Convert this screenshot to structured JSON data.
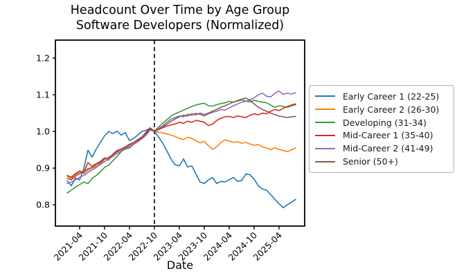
{
  "figure": {
    "title_line1": "Headcount Over Time by Age Group",
    "title_line2": "Software Developers (Normalized)",
    "xlabel": "Date"
  },
  "chart_data": {
    "type": "line",
    "title": "Headcount Over Time by Age Group — Software Developers (Normalized)",
    "xlabel": "Date",
    "ylabel": "",
    "grid": false,
    "legend_position": "right-outside",
    "x_months": [
      "2021-01",
      "2021-02",
      "2021-03",
      "2021-04",
      "2021-05",
      "2021-06",
      "2021-07",
      "2021-08",
      "2021-09",
      "2021-10",
      "2021-11",
      "2021-12",
      "2022-01",
      "2022-02",
      "2022-03",
      "2022-04",
      "2022-05",
      "2022-06",
      "2022-07",
      "2022-08",
      "2022-09",
      "2022-10",
      "2022-11",
      "2022-12",
      "2023-01",
      "2023-02",
      "2023-03",
      "2023-04",
      "2023-05",
      "2023-06",
      "2023-07",
      "2023-08",
      "2023-09",
      "2023-10",
      "2023-11",
      "2023-12",
      "2024-01",
      "2024-02",
      "2024-03",
      "2024-04",
      "2024-05",
      "2024-06",
      "2024-07",
      "2024-08",
      "2024-09",
      "2024-10",
      "2024-11",
      "2024-12",
      "2025-01",
      "2025-02",
      "2025-03",
      "2025-04",
      "2025-05",
      "2025-06",
      "2025-07",
      "2025-08"
    ],
    "xtick_labels": [
      "2021-04",
      "2021-10",
      "2022-04",
      "2022-10",
      "2023-04",
      "2023-10",
      "2024-04",
      "2024-10",
      "2025-04"
    ],
    "ytick_values": [
      0.8,
      0.9,
      1.0,
      1.1,
      1.2
    ],
    "ytick_labels": [
      "0.8",
      "0.9",
      "1.0",
      "1.1",
      "1.2"
    ],
    "ylim": [
      0.742,
      1.249
    ],
    "xlim_index": [
      -2.833,
      57.167
    ],
    "vline": {
      "x": "2022-10",
      "style": "dashed",
      "color": "#000000"
    },
    "series": [
      {
        "name": "Early Career 1 (22-25)",
        "color": "#1f77b4",
        "values": [
          0.865,
          0.852,
          0.873,
          0.868,
          0.898,
          0.949,
          0.93,
          0.952,
          0.97,
          0.988,
          1.0,
          0.994,
          1.001,
          0.99,
          0.997,
          0.975,
          0.981,
          0.99,
          1.0,
          1.003,
          1.009,
          1.0,
          0.985,
          0.968,
          0.947,
          0.925,
          0.909,
          0.906,
          0.925,
          0.903,
          0.906,
          0.884,
          0.862,
          0.858,
          0.868,
          0.874,
          0.858,
          0.864,
          0.862,
          0.868,
          0.875,
          0.864,
          0.866,
          0.884,
          0.882,
          0.87,
          0.852,
          0.843,
          0.84,
          0.828,
          0.815,
          0.803,
          0.792,
          0.8,
          0.807,
          0.815
        ]
      },
      {
        "name": "Early Career 2 (26-30)",
        "color": "#ff7f0e",
        "values": [
          0.878,
          0.872,
          0.882,
          0.89,
          0.885,
          0.894,
          0.9,
          0.905,
          0.912,
          0.924,
          0.93,
          0.938,
          0.944,
          0.95,
          0.955,
          0.962,
          0.968,
          0.975,
          0.982,
          0.995,
          1.008,
          1.0,
          0.998,
          0.996,
          0.993,
          0.99,
          0.986,
          0.981,
          0.978,
          0.984,
          0.981,
          0.975,
          0.969,
          0.973,
          0.961,
          0.951,
          0.958,
          0.97,
          0.977,
          0.974,
          0.97,
          0.972,
          0.968,
          0.97,
          0.966,
          0.962,
          0.964,
          0.958,
          0.955,
          0.95,
          0.956,
          0.951,
          0.948,
          0.945,
          0.95,
          0.955
        ]
      },
      {
        "name": "Developing (31-34)",
        "color": "#2ca02c",
        "values": [
          0.832,
          0.84,
          0.848,
          0.855,
          0.862,
          0.858,
          0.872,
          0.88,
          0.89,
          0.902,
          0.908,
          0.92,
          0.932,
          0.945,
          0.952,
          0.955,
          0.965,
          0.972,
          0.98,
          0.992,
          1.006,
          1.0,
          1.012,
          1.022,
          1.032,
          1.042,
          1.048,
          1.053,
          1.058,
          1.063,
          1.068,
          1.072,
          1.075,
          1.077,
          1.07,
          1.069,
          1.073,
          1.076,
          1.078,
          1.082,
          1.08,
          1.083,
          1.086,
          1.083,
          1.08,
          1.085,
          1.082,
          1.08,
          1.078,
          1.072,
          1.066,
          1.07,
          1.068,
          1.066,
          1.07,
          1.073
        ]
      },
      {
        "name": "Mid-Career 1 (35-40)",
        "color": "#d62728",
        "values": [
          0.88,
          0.875,
          0.885,
          0.892,
          0.888,
          0.915,
          0.905,
          0.912,
          0.918,
          0.928,
          0.922,
          0.938,
          0.948,
          0.952,
          0.958,
          0.965,
          0.97,
          0.978,
          0.985,
          0.998,
          1.01,
          1.0,
          1.005,
          1.01,
          1.015,
          1.018,
          1.02,
          1.025,
          1.022,
          1.028,
          1.025,
          1.03,
          1.028,
          1.025,
          1.016,
          1.02,
          1.03,
          1.036,
          1.04,
          1.041,
          1.038,
          1.042,
          1.04,
          1.038,
          1.044,
          1.048,
          1.045,
          1.05,
          1.048,
          1.055,
          1.06,
          1.057,
          1.063,
          1.068,
          1.072,
          1.075
        ]
      },
      {
        "name": "Mid-Career 2 (41-49)",
        "color": "#9467bd",
        "values": [
          0.858,
          0.862,
          0.868,
          0.875,
          0.88,
          0.888,
          0.895,
          0.902,
          0.91,
          0.918,
          0.924,
          0.932,
          0.94,
          0.946,
          0.952,
          0.958,
          0.965,
          0.972,
          0.98,
          0.99,
          1.004,
          1.0,
          1.008,
          1.015,
          1.025,
          1.034,
          1.038,
          1.042,
          1.04,
          1.047,
          1.044,
          1.05,
          1.046,
          1.042,
          1.048,
          1.052,
          1.055,
          1.06,
          1.058,
          1.064,
          1.07,
          1.075,
          1.08,
          1.082,
          1.086,
          1.092,
          1.1,
          1.104,
          1.096,
          1.094,
          1.104,
          1.11,
          1.101,
          1.104,
          1.102,
          1.106
        ]
      },
      {
        "name": "Senior (50+)",
        "color": "#8c564b",
        "values": [
          0.872,
          0.868,
          0.878,
          0.885,
          0.89,
          0.898,
          0.902,
          0.91,
          0.915,
          0.925,
          0.928,
          0.936,
          0.945,
          0.95,
          0.956,
          0.963,
          0.97,
          0.976,
          0.983,
          0.995,
          1.006,
          1.0,
          1.006,
          1.012,
          1.02,
          1.028,
          1.034,
          1.04,
          1.044,
          1.042,
          1.048,
          1.045,
          1.05,
          1.046,
          1.05,
          1.055,
          1.06,
          1.066,
          1.07,
          1.075,
          1.08,
          1.084,
          1.088,
          1.091,
          1.085,
          1.075,
          1.066,
          1.06,
          1.055,
          1.05,
          1.046,
          1.042,
          1.04,
          1.038,
          1.04,
          1.041
        ]
      }
    ]
  }
}
